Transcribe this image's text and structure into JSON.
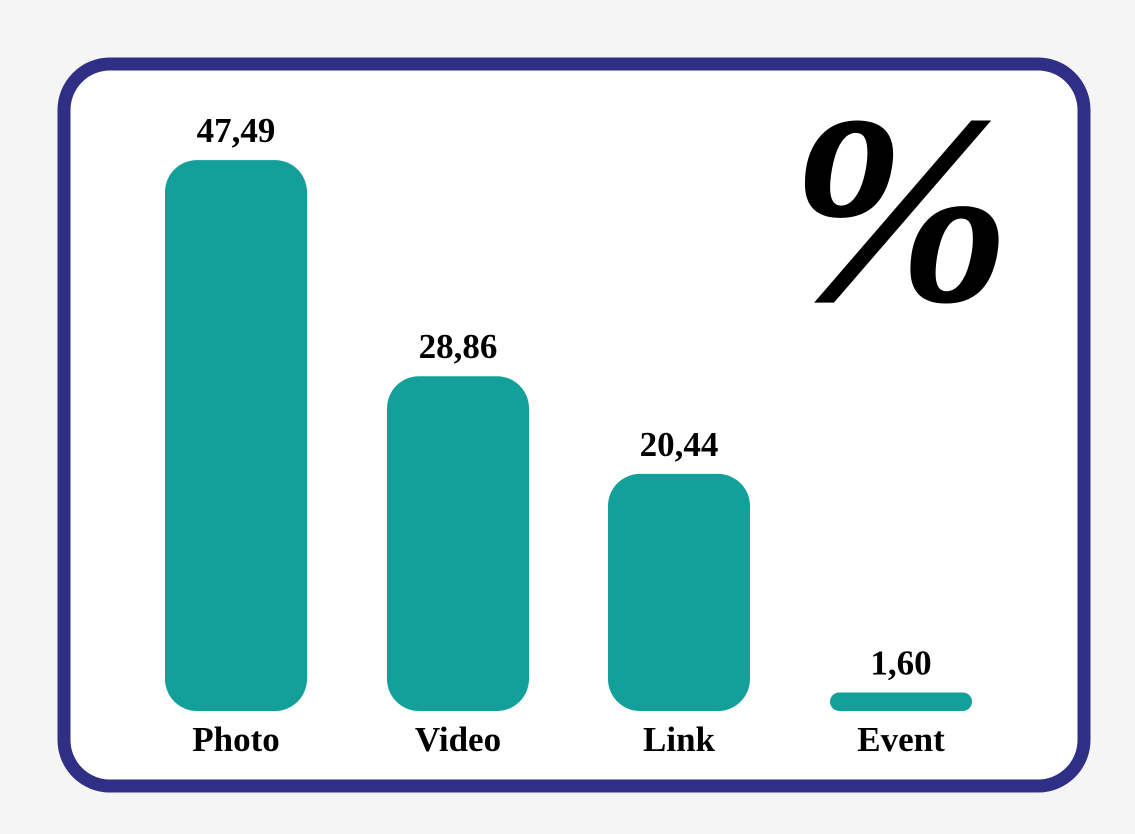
{
  "chart_data": {
    "type": "bar",
    "title": "%",
    "categories": [
      "Photo",
      "Video",
      "Link",
      "Event"
    ],
    "values": [
      47.49,
      28.86,
      20.44,
      1.6
    ],
    "value_labels": [
      "47,49",
      "28,86",
      "20,44",
      "1,60"
    ],
    "color": "#13a09a",
    "frame_color": "#2e2f85"
  }
}
